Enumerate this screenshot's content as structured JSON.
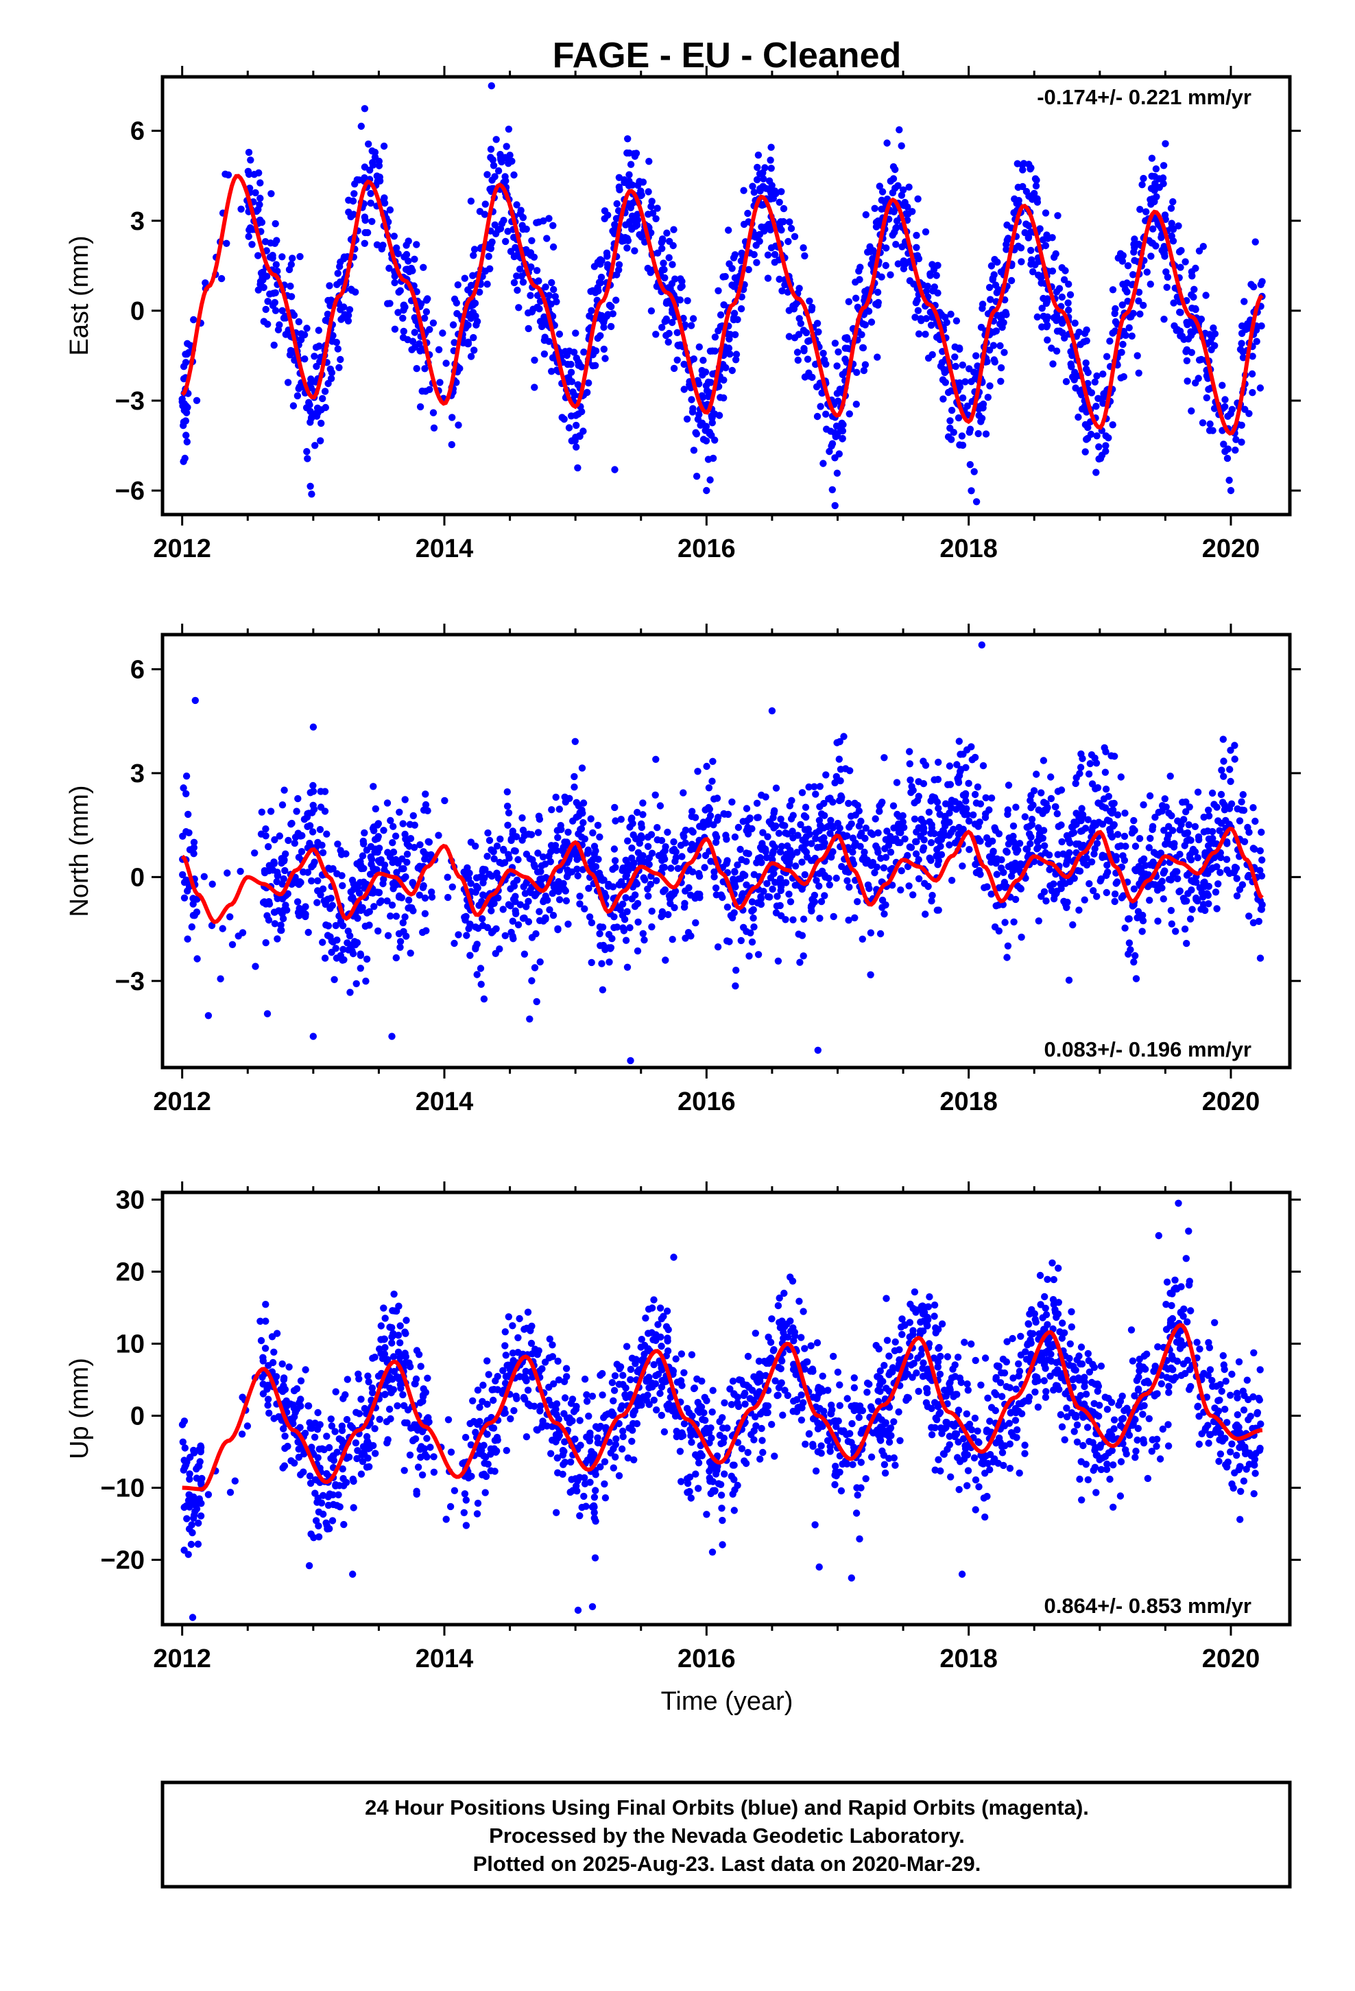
{
  "title": "FAGE  - EU - Cleaned",
  "xlabel": "Time (year)",
  "colors": {
    "points": "#0000ff",
    "fit": "#ff0000",
    "frame": "#000000"
  },
  "footer": [
    "24 Hour Positions Using Final Orbits (blue) and Rapid Orbits (magenta).",
    "Processed by the Nevada Geodetic Laboratory.",
    "Plotted on 2025-Aug-23. Last data on 2020-Mar-29."
  ],
  "chart_data": [
    {
      "type": "scatter",
      "ylabel": "East (mm)",
      "rate_text": "-0.174+/- 0.221 mm/yr",
      "xlim": [
        2011.85,
        2020.45
      ],
      "ylim": [
        -6.8,
        7.8
      ],
      "xticks": [
        2012,
        2014,
        2016,
        2018,
        2020
      ],
      "yticks": [
        -6,
        -3,
        0,
        3,
        6
      ],
      "data_range": [
        2012.0,
        2020.24
      ],
      "fit": {
        "x": [
          2012.0,
          2012.2,
          2012.42,
          2012.7,
          2013.0,
          2013.2,
          2013.42,
          2013.7,
          2014.0,
          2014.2,
          2014.42,
          2014.7,
          2015.0,
          2015.2,
          2015.42,
          2015.7,
          2016.0,
          2016.2,
          2016.42,
          2016.7,
          2017.0,
          2017.2,
          2017.42,
          2017.7,
          2018.0,
          2018.2,
          2018.42,
          2018.7,
          2019.0,
          2019.2,
          2019.42,
          2019.7,
          2020.0,
          2020.24
        ],
        "y": [
          -2.8,
          0.8,
          4.5,
          1.2,
          -2.9,
          0.5,
          4.3,
          1.0,
          -3.1,
          0.4,
          4.2,
          0.8,
          -3.2,
          0.3,
          4.0,
          0.6,
          -3.4,
          0.2,
          3.8,
          0.4,
          -3.5,
          0.1,
          3.7,
          0.2,
          -3.7,
          0.0,
          3.5,
          0.0,
          -3.9,
          -0.1,
          3.3,
          -0.2,
          -4.1,
          0.5
        ]
      },
      "points": {
        "mode": "fit-plus-scatter",
        "count": 2300,
        "spread": 1.1,
        "gaps": [
          [
            2012.05,
            2012.5
          ],
          [
            2013.9,
            2014.05
          ]
        ],
        "outliers": [
          [
            2014.36,
            7.5
          ],
          [
            2016.98,
            -6.5
          ],
          [
            2015.3,
            -5.3
          ],
          [
            2016.0,
            -6.0
          ],
          [
            2020.0,
            -6.0
          ],
          [
            2012.95,
            -4.7
          ]
        ]
      }
    },
    {
      "type": "scatter",
      "ylabel": "North (mm)",
      "rate_text": "0.083+/- 0.196 mm/yr",
      "xlim": [
        2011.85,
        2020.45
      ],
      "ylim": [
        -5.5,
        7.0
      ],
      "xticks": [
        2012,
        2014,
        2016,
        2018,
        2020
      ],
      "yticks": [
        -3,
        0,
        3,
        6
      ],
      "data_range": [
        2012.0,
        2020.24
      ],
      "fit": {
        "x": [
          2012.0,
          2012.12,
          2012.25,
          2012.37,
          2012.5,
          2012.62,
          2012.75,
          2012.87,
          2013.0,
          2013.12,
          2013.25,
          2013.37,
          2013.5,
          2013.62,
          2013.75,
          2013.87,
          2014.0,
          2014.12,
          2014.25,
          2014.37,
          2014.5,
          2014.62,
          2014.75,
          2014.87,
          2015.0,
          2015.12,
          2015.25,
          2015.37,
          2015.5,
          2015.62,
          2015.75,
          2015.87,
          2016.0,
          2016.12,
          2016.25,
          2016.37,
          2016.5,
          2016.62,
          2016.75,
          2016.87,
          2017.0,
          2017.12,
          2017.25,
          2017.37,
          2017.5,
          2017.62,
          2017.75,
          2017.87,
          2018.0,
          2018.12,
          2018.25,
          2018.37,
          2018.5,
          2018.62,
          2018.75,
          2018.87,
          2019.0,
          2019.12,
          2019.25,
          2019.37,
          2019.5,
          2019.62,
          2019.75,
          2019.87,
          2020.0,
          2020.12,
          2020.24
        ],
        "y": [
          0.6,
          -0.5,
          -1.3,
          -0.8,
          0.0,
          -0.2,
          -0.5,
          0.2,
          0.8,
          0.0,
          -1.2,
          -0.6,
          0.1,
          0.0,
          -0.5,
          0.3,
          0.9,
          0.0,
          -1.1,
          -0.5,
          0.2,
          0.0,
          -0.4,
          0.3,
          1.0,
          0.1,
          -1.0,
          -0.4,
          0.3,
          0.1,
          -0.3,
          0.4,
          1.1,
          0.1,
          -0.9,
          -0.3,
          0.4,
          0.2,
          -0.2,
          0.5,
          1.2,
          0.2,
          -0.8,
          -0.2,
          0.5,
          0.3,
          -0.1,
          0.6,
          1.3,
          0.3,
          -0.7,
          -0.1,
          0.6,
          0.4,
          0.0,
          0.7,
          1.3,
          0.3,
          -0.7,
          -0.1,
          0.6,
          0.4,
          0.1,
          0.7,
          1.4,
          0.5,
          -0.6
        ]
      },
      "points": {
        "mode": "fit-plus-scatter",
        "count": 2300,
        "spread": 1.05,
        "trend": [
          [
            2012.0,
            0.0
          ],
          [
            2014.5,
            0.0
          ],
          [
            2016.5,
            0.4
          ],
          [
            2017.9,
            1.1
          ],
          [
            2018.5,
            0.5
          ],
          [
            2020.24,
            0.0
          ]
        ],
        "gaps": [
          [
            2012.12,
            2012.6
          ],
          [
            2013.9,
            2014.15
          ]
        ],
        "outliers": [
          [
            2012.1,
            5.1
          ],
          [
            2018.1,
            6.7
          ],
          [
            2016.5,
            4.8
          ],
          [
            2015.42,
            -5.3
          ],
          [
            2016.85,
            -5.0
          ],
          [
            2012.2,
            -4.0
          ],
          [
            2013.0,
            -4.6
          ],
          [
            2013.6,
            -4.6
          ],
          [
            2014.65,
            -4.1
          ]
        ]
      }
    },
    {
      "type": "scatter",
      "ylabel": "Up (mm)",
      "rate_text": "0.864+/- 0.853 mm/yr",
      "xlim": [
        2011.85,
        2020.45
      ],
      "ylim": [
        -29,
        31
      ],
      "xticks": [
        2012,
        2014,
        2016,
        2018,
        2020
      ],
      "yticks": [
        -20,
        -10,
        0,
        10,
        20,
        30
      ],
      "data_range": [
        2012.0,
        2020.24
      ],
      "fit": {
        "x": [
          2012.0,
          2012.15,
          2012.35,
          2012.62,
          2012.85,
          2013.1,
          2013.35,
          2013.62,
          2013.85,
          2014.1,
          2014.35,
          2014.62,
          2014.85,
          2015.1,
          2015.35,
          2015.62,
          2015.85,
          2016.1,
          2016.35,
          2016.62,
          2016.85,
          2017.1,
          2017.35,
          2017.62,
          2017.85,
          2018.1,
          2018.35,
          2018.62,
          2018.85,
          2019.1,
          2019.35,
          2019.62,
          2019.85,
          2020.05,
          2020.24
        ],
        "y": [
          -10.0,
          -10.2,
          -3.5,
          6.5,
          -2.0,
          -9.2,
          -2.0,
          7.5,
          -1.5,
          -8.5,
          -1.0,
          8.2,
          -1.0,
          -7.5,
          0.0,
          9.0,
          -0.5,
          -6.5,
          1.0,
          10.0,
          0.0,
          -6.0,
          1.5,
          10.8,
          0.5,
          -5.0,
          2.5,
          11.6,
          1.0,
          -4.2,
          3.0,
          12.6,
          0.0,
          -3.2,
          -2.0
        ]
      },
      "points": {
        "mode": "fit-plus-scatter",
        "count": 2300,
        "spread": 4.6,
        "gaps": [
          [
            2012.15,
            2012.6
          ],
          [
            2013.9,
            2014.15
          ]
        ],
        "outliers": [
          [
            2019.6,
            29.5
          ],
          [
            2012.08,
            -28.0
          ],
          [
            2015.02,
            -27.0
          ],
          [
            2015.13,
            -26.5
          ],
          [
            2013.3,
            -22.0
          ],
          [
            2017.95,
            -22.0
          ],
          [
            2016.86,
            -21.0
          ],
          [
            2019.45,
            25.0
          ],
          [
            2015.75,
            22.0
          ]
        ]
      }
    }
  ]
}
